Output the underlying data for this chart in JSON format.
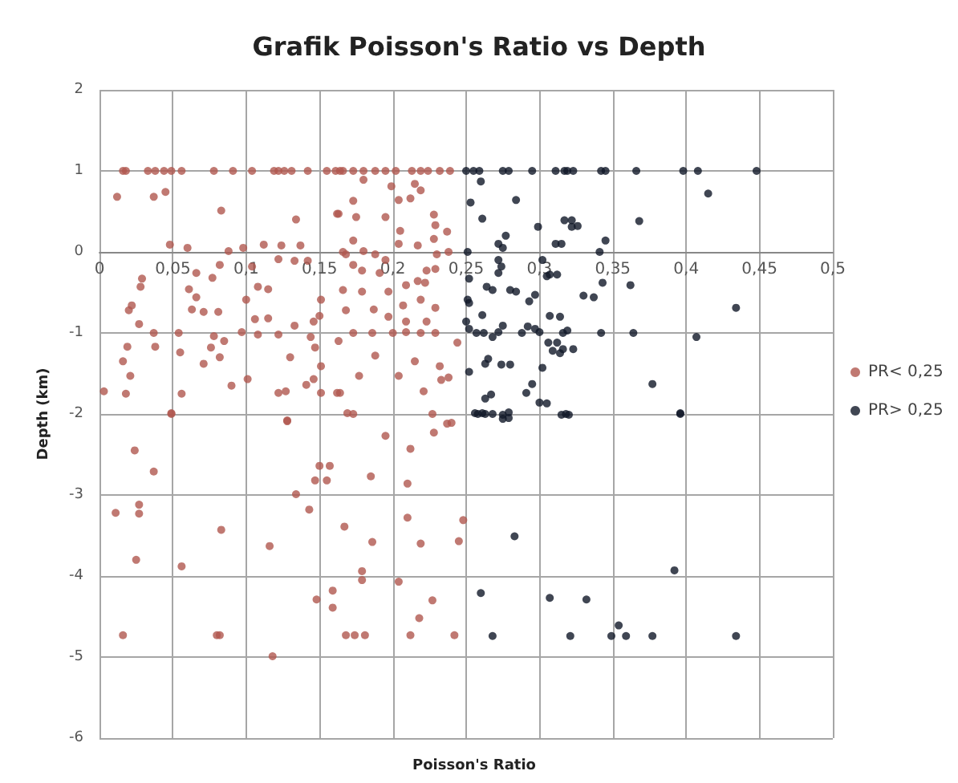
{
  "chart_data": {
    "type": "scatter",
    "title": "Grafik Poisson's Ratio vs Depth",
    "xlabel": "Poisson's Ratio",
    "ylabel": "Depth (km)",
    "xlim": [
      0,
      0.5
    ],
    "ylim": [
      -6,
      2
    ],
    "xticks": [
      {
        "value": 0,
        "label": "0"
      },
      {
        "value": 0.05,
        "label": "0,05"
      },
      {
        "value": 0.1,
        "label": "0,1"
      },
      {
        "value": 0.15,
        "label": "0,15"
      },
      {
        "value": 0.2,
        "label": "0,2"
      },
      {
        "value": 0.25,
        "label": "0,25"
      },
      {
        "value": 0.3,
        "label": "0,3"
      },
      {
        "value": 0.35,
        "label": "0,35"
      },
      {
        "value": 0.4,
        "label": "0,4"
      },
      {
        "value": 0.45,
        "label": "0,45"
      },
      {
        "value": 0.5,
        "label": "0,5"
      }
    ],
    "yticks": [
      -6,
      -5,
      -4,
      -3,
      -2,
      -1,
      0,
      1,
      2
    ],
    "grid": true,
    "legend": "right",
    "marker": "circle",
    "series": [
      {
        "name": "PR< 0,25",
        "color": "#b0584f",
        "x": [
          0.016,
          0.018,
          0.033,
          0.038,
          0.044,
          0.049,
          0.056,
          0.078,
          0.091,
          0.104,
          0.119,
          0.122,
          0.126,
          0.131,
          0.142,
          0.155,
          0.161,
          0.164,
          0.166,
          0.173,
          0.18,
          0.188,
          0.195,
          0.202,
          0.213,
          0.219,
          0.224,
          0.232,
          0.239,
          0.012,
          0.037,
          0.045,
          0.083,
          0.134,
          0.163,
          0.048,
          0.06,
          0.082,
          0.088,
          0.098,
          0.112,
          0.124,
          0.137,
          0.122,
          0.133,
          0.142,
          0.029,
          0.028,
          0.066,
          0.077,
          0.061,
          0.066,
          0.022,
          0.02,
          0.027,
          0.037,
          0.054,
          0.063,
          0.071,
          0.081,
          0.1,
          0.108,
          0.115,
          0.104,
          0.115,
          0.106,
          0.097,
          0.108,
          0.122,
          0.133,
          0.146,
          0.151,
          0.15,
          0.144,
          0.078,
          0.085,
          0.076,
          0.055,
          0.038,
          0.019,
          0.016,
          0.021,
          0.003,
          0.018,
          0.049,
          0.056,
          0.071,
          0.082,
          0.09,
          0.101,
          0.122,
          0.127,
          0.13,
          0.141,
          0.146,
          0.151,
          0.151,
          0.164,
          0.163,
          0.128,
          0.147,
          0.18,
          0.199,
          0.215,
          0.219,
          0.212,
          0.204,
          0.173,
          0.162,
          0.175,
          0.195,
          0.228,
          0.229,
          0.237,
          0.228,
          0.205,
          0.173,
          0.204,
          0.217,
          0.166,
          0.168,
          0.18,
          0.188,
          0.195,
          0.173,
          0.179,
          0.191,
          0.23,
          0.238,
          0.223,
          0.229,
          0.217,
          0.222,
          0.209,
          0.166,
          0.179,
          0.197,
          0.168,
          0.187,
          0.207,
          0.219,
          0.229,
          0.197,
          0.209,
          0.223,
          0.173,
          0.186,
          0.2,
          0.209,
          0.219,
          0.229,
          0.244,
          0.188,
          0.215,
          0.232,
          0.233,
          0.238,
          0.204,
          0.177,
          0.221,
          0.162,
          0.169,
          0.237,
          0.049,
          0.024,
          0.037,
          0.011,
          0.027,
          0.027,
          0.025,
          0.056,
          0.083,
          0.016,
          0.08,
          0.082,
          0.116,
          0.118,
          0.128,
          0.134,
          0.143,
          0.15,
          0.157,
          0.147,
          0.155,
          0.167,
          0.148,
          0.159,
          0.159,
          0.168,
          0.174,
          0.181,
          0.173,
          0.185,
          0.186,
          0.179,
          0.179,
          0.195,
          0.204,
          0.21,
          0.21,
          0.212,
          0.212,
          0.218,
          0.219,
          0.227,
          0.228,
          0.227,
          0.24,
          0.242,
          0.245,
          0.248
        ],
        "values": [
          1,
          1,
          1,
          1,
          1,
          1,
          1,
          1,
          1,
          1,
          1,
          1,
          1,
          1,
          1,
          1,
          1,
          1,
          1,
          1,
          1,
          1,
          1,
          1,
          1,
          1,
          1,
          1,
          1,
          0.68,
          0.68,
          0.74,
          0.51,
          0.4,
          0.47,
          0.09,
          0.05,
          -0.16,
          0.01,
          0.05,
          0.09,
          0.08,
          0.08,
          -0.09,
          -0.11,
          -0.11,
          -0.33,
          -0.43,
          -0.26,
          -0.32,
          -0.46,
          -0.56,
          -0.66,
          -0.72,
          -0.89,
          -1,
          -1,
          -0.71,
          -0.74,
          -0.74,
          -0.59,
          -0.43,
          -0.46,
          -0.18,
          -0.82,
          -0.83,
          -0.99,
          -1.02,
          -1.02,
          -0.91,
          -0.86,
          -0.59,
          -0.79,
          -1.05,
          -1.04,
          -1.1,
          -1.18,
          -1.24,
          -1.17,
          -1.17,
          -1.35,
          -1.53,
          -1.72,
          -1.75,
          -1.99,
          -1.75,
          -1.38,
          -1.3,
          -1.65,
          -1.57,
          -1.74,
          -1.72,
          -1.3,
          -1.64,
          -1.57,
          -1.41,
          -1.74,
          -1.74,
          -1.1,
          -2.09,
          -1.18,
          0.89,
          0.81,
          0.84,
          0.76,
          0.66,
          0.64,
          0.63,
          0.47,
          0.43,
          0.43,
          0.46,
          0.33,
          0.25,
          0.16,
          0.26,
          0.14,
          0.1,
          0.08,
          0,
          -0.03,
          0.01,
          -0.03,
          -0.1,
          -0.16,
          -0.23,
          -0.26,
          -0.03,
          0,
          -0.23,
          -0.21,
          -0.36,
          -0.38,
          -0.41,
          -0.47,
          -0.49,
          -0.49,
          -0.72,
          -0.71,
          -0.66,
          -0.59,
          -0.69,
          -0.8,
          -0.86,
          -0.86,
          -1,
          -1,
          -1,
          -0.99,
          -1,
          -1,
          -1.12,
          -1.28,
          -1.35,
          -1.41,
          -1.58,
          -1.55,
          -1.53,
          -1.53,
          -1.72,
          -1.74,
          -1.99,
          -2.12,
          -2,
          -2.45,
          -2.71,
          -3.22,
          -3.12,
          -3.23,
          -3.8,
          -3.88,
          -3.43,
          -4.73,
          -4.73,
          -4.73,
          -3.63,
          -4.99,
          -2.08,
          -2.99,
          -3.18,
          -2.64,
          -2.64,
          -2.82,
          -2.82,
          -3.39,
          -4.29,
          -4.18,
          -4.39,
          -4.73,
          -4.73,
          -4.73,
          -2,
          -2.77,
          -3.58,
          -3.94,
          -4.05,
          -2.27,
          -4.07,
          -3.28,
          -2.86,
          -2.43,
          -4.73,
          -4.52,
          -3.6,
          -4.3,
          -2.23,
          -2,
          -2.11,
          -4.73,
          -3.57,
          -3.31
        ]
      },
      {
        "name": "PR> 0,25",
        "color": "#101828",
        "x": [
          0.25,
          0.255,
          0.259,
          0.275,
          0.279,
          0.295,
          0.311,
          0.317,
          0.319,
          0.323,
          0.342,
          0.345,
          0.366,
          0.398,
          0.408,
          0.448,
          0.26,
          0.253,
          0.284,
          0.261,
          0.299,
          0.317,
          0.322,
          0.277,
          0.272,
          0.275,
          0.311,
          0.251,
          0.272,
          0.274,
          0.272,
          0.302,
          0.307,
          0.305,
          0.252,
          0.264,
          0.268,
          0.28,
          0.284,
          0.297,
          0.293,
          0.251,
          0.252,
          0.261,
          0.25,
          0.252,
          0.257,
          0.262,
          0.268,
          0.272,
          0.275,
          0.288,
          0.292,
          0.297,
          0.3,
          0.307,
          0.306,
          0.309,
          0.316,
          0.265,
          0.263,
          0.274,
          0.28,
          0.252,
          0.302,
          0.295,
          0.291,
          0.3,
          0.267,
          0.263,
          0.256,
          0.261,
          0.275,
          0.275,
          0.315,
          0.415,
          0.322,
          0.326,
          0.368,
          0.315,
          0.345,
          0.341,
          0.312,
          0.362,
          0.343,
          0.33,
          0.337,
          0.434,
          0.314,
          0.316,
          0.319,
          0.342,
          0.364,
          0.407,
          0.312,
          0.323,
          0.314,
          0.377,
          0.396,
          0.32,
          0.258,
          0.263,
          0.268,
          0.279,
          0.279,
          0.305,
          0.318,
          0.396,
          0.283,
          0.392,
          0.26,
          0.307,
          0.332,
          0.354,
          0.268,
          0.321,
          0.349,
          0.359,
          0.377,
          0.434
        ],
        "values": [
          1,
          1,
          1,
          1,
          1,
          1,
          1,
          1,
          1,
          1,
          1,
          1,
          1,
          1,
          1,
          1,
          0.87,
          0.61,
          0.64,
          0.41,
          0.31,
          0.39,
          0.31,
          0.2,
          0.1,
          0.05,
          0.1,
          0,
          -0.1,
          -0.18,
          -0.26,
          -0.1,
          -0.28,
          -0.3,
          -0.33,
          -0.43,
          -0.47,
          -0.47,
          -0.49,
          -0.53,
          -0.61,
          -0.59,
          -0.63,
          -0.78,
          -0.86,
          -0.95,
          -1,
          -1,
          -1.05,
          -0.99,
          -0.91,
          -1,
          -0.92,
          -0.95,
          -0.99,
          -0.79,
          -1.12,
          -1.22,
          -1.2,
          -1.32,
          -1.38,
          -1.39,
          -1.39,
          -1.48,
          -1.43,
          -1.63,
          -1.74,
          -1.86,
          -1.76,
          -1.81,
          -1.99,
          -1.99,
          -2.01,
          -2.06,
          -2.01,
          0.72,
          0.39,
          0.32,
          0.38,
          0.1,
          0.14,
          0,
          -0.28,
          -0.41,
          -0.38,
          -0.54,
          -0.56,
          -0.69,
          -0.8,
          -1,
          -0.97,
          -1,
          -1,
          -1.05,
          -1.12,
          -1.2,
          -1.25,
          -1.63,
          -1.99,
          -2.01,
          -2,
          -2,
          -2,
          -1.98,
          -2.05,
          -1.87,
          -2,
          -2,
          -3.51,
          -3.93,
          -4.21,
          -4.27,
          -4.29,
          -4.61,
          -4.74,
          -4.74,
          -4.74,
          -4.74,
          -4.74,
          -4.74
        ]
      }
    ]
  }
}
